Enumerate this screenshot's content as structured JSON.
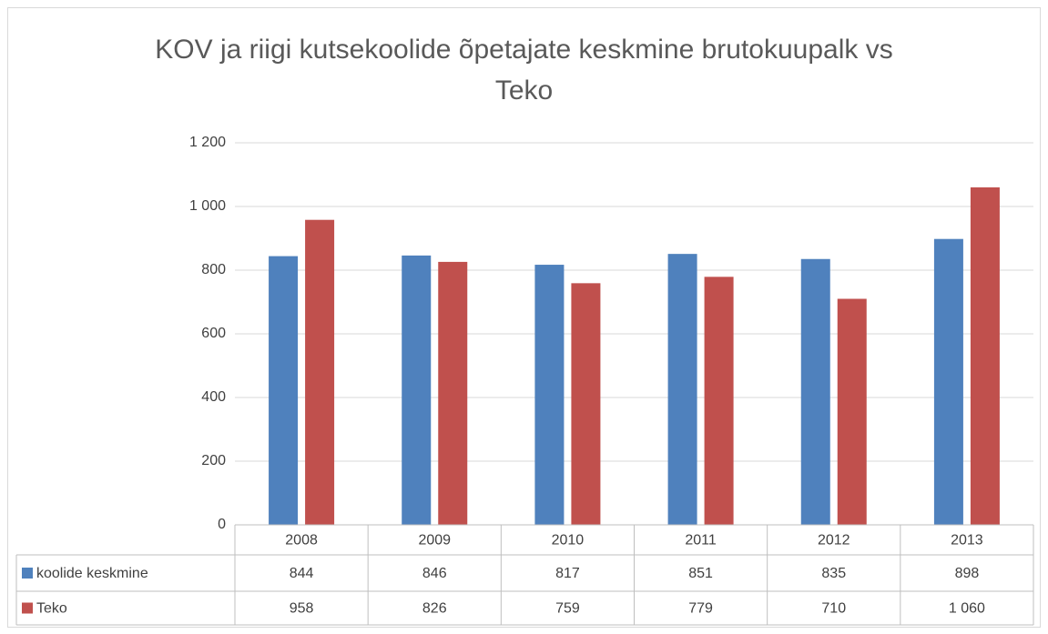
{
  "chart_data": {
    "type": "bar",
    "title": "KOV ja riigi kutsekoolide õpetajate keskmine brutokuupalk vs Teko",
    "categories": [
      "2008",
      "2009",
      "2010",
      "2011",
      "2012",
      "2013"
    ],
    "series": [
      {
        "name": "koolide keskmine",
        "color": "#4f81bd",
        "values": [
          844,
          846,
          817,
          851,
          835,
          898
        ]
      },
      {
        "name": "Teko",
        "color": "#c0504d",
        "values": [
          958,
          826,
          759,
          779,
          710,
          1060
        ],
        "value_labels": [
          "958",
          "826",
          "759",
          "779",
          "710",
          "1 060"
        ]
      }
    ],
    "ylim": [
      0,
      1200
    ],
    "yticks": [
      0,
      200,
      400,
      600,
      800,
      {
        "value": 1000,
        "label": "1 000"
      },
      {
        "value": 1200,
        "label": "1 200"
      }
    ],
    "grid": true
  }
}
